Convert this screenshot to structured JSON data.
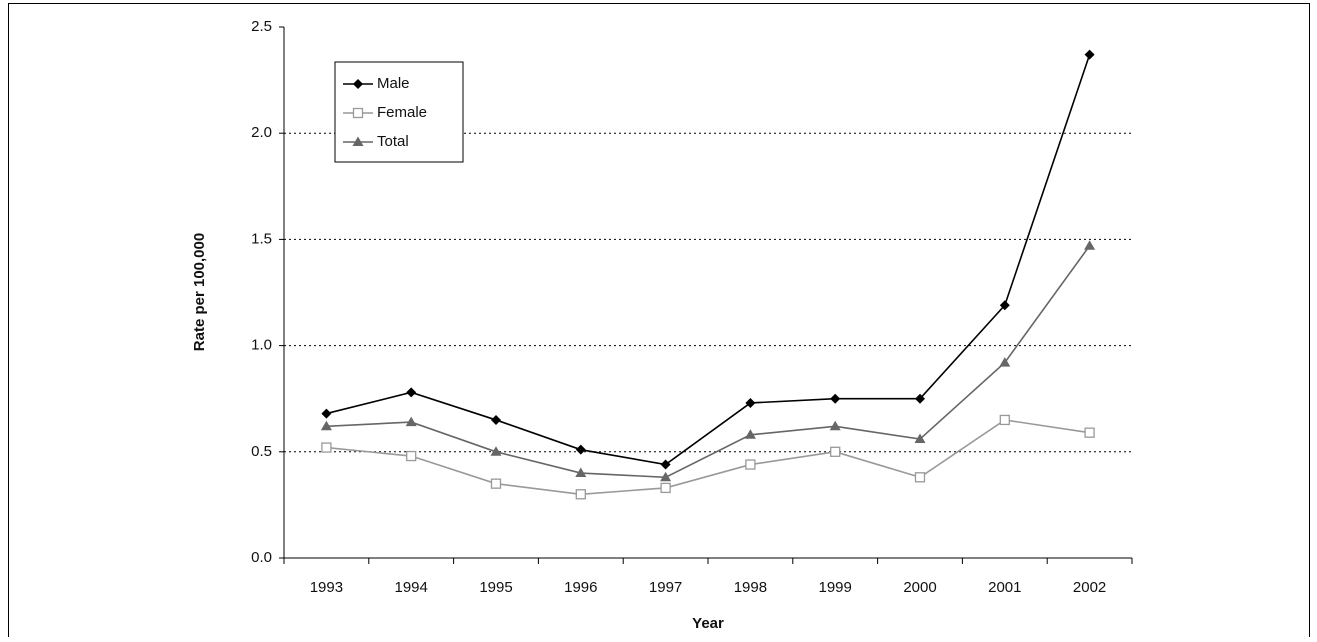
{
  "chart_data": {
    "type": "line",
    "x_label": "Year",
    "y_label": "Rate per 100,000",
    "categories": [
      "1993",
      "1994",
      "1995",
      "1996",
      "1997",
      "1998",
      "1999",
      "2000",
      "2001",
      "2002"
    ],
    "series": [
      {
        "name": "Male",
        "color": "#000000",
        "marker": "diamond",
        "values": [
          0.68,
          0.78,
          0.65,
          0.51,
          0.44,
          0.73,
          0.75,
          0.75,
          1.19,
          2.37
        ]
      },
      {
        "name": "Female",
        "color": "#999999",
        "marker": "square-open",
        "values": [
          0.52,
          0.48,
          0.35,
          0.3,
          0.33,
          0.44,
          0.5,
          0.38,
          0.65,
          0.59
        ]
      },
      {
        "name": "Total",
        "color": "#666666",
        "marker": "triangle",
        "values": [
          0.62,
          0.64,
          0.5,
          0.4,
          0.38,
          0.58,
          0.62,
          0.56,
          0.92,
          1.47
        ]
      }
    ],
    "ylim": [
      0,
      2.5
    ],
    "yticks": [
      {
        "value": 0,
        "label": "0.0"
      },
      0.5,
      {
        "value": 1,
        "label": "1.0"
      },
      1.5,
      {
        "value": 2,
        "label": "2.0"
      },
      2.5
    ],
    "grid": true,
    "legend": "upper left"
  }
}
